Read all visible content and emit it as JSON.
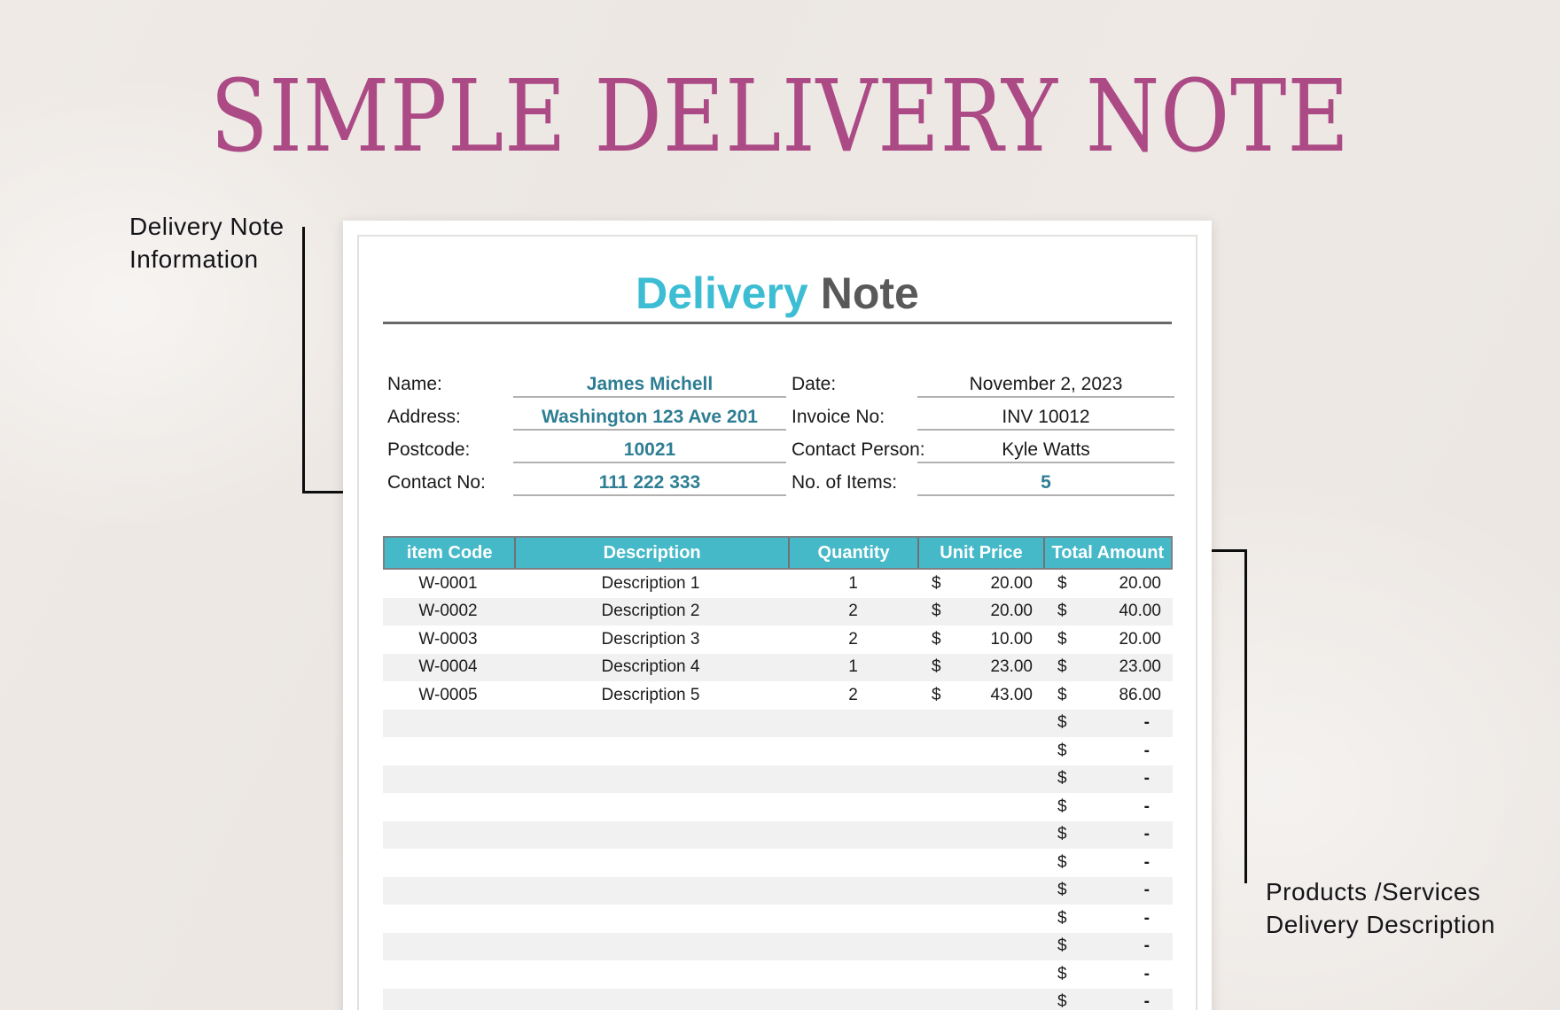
{
  "page": {
    "title": "SIMPLE DELIVERY NOTE"
  },
  "annotations": {
    "left": {
      "line1": "Delivery Note",
      "line2": "Information"
    },
    "right": {
      "line1": "Products /Services",
      "line2": "Delivery Description"
    }
  },
  "document": {
    "heading": {
      "accent": "Delivery",
      "rest": "Note"
    },
    "info_left": [
      {
        "label": "Name:",
        "value": "James Michell"
      },
      {
        "label": "Address:",
        "value": "Washington 123 Ave 201"
      },
      {
        "label": "Postcode:",
        "value": "10021"
      },
      {
        "label": "Contact No:",
        "value": "111 222 333"
      }
    ],
    "info_right": [
      {
        "label": "Date:",
        "value": "November 2, 2023"
      },
      {
        "label": "Invoice No:",
        "value": "INV 10012"
      },
      {
        "label": "Contact Person:",
        "value": "Kyle Watts"
      },
      {
        "label": "No. of Items:",
        "value": "5"
      }
    ],
    "table": {
      "headers": [
        "item Code",
        "Description",
        "Quantity",
        "Unit Price",
        "Total Amount"
      ],
      "currency": "$",
      "empty_value": "-",
      "rows": [
        {
          "code": "W-0001",
          "description": "Description 1",
          "qty": "1",
          "unit_price": "20.00",
          "total": "20.00"
        },
        {
          "code": "W-0002",
          "description": "Description 2",
          "qty": "2",
          "unit_price": "20.00",
          "total": "40.00"
        },
        {
          "code": "W-0003",
          "description": "Description 3",
          "qty": "2",
          "unit_price": "10.00",
          "total": "20.00"
        },
        {
          "code": "W-0004",
          "description": "Description 4",
          "qty": "1",
          "unit_price": "23.00",
          "total": "23.00"
        },
        {
          "code": "W-0005",
          "description": "Description 5",
          "qty": "2",
          "unit_price": "43.00",
          "total": "86.00"
        }
      ],
      "empty_row_count": 11
    }
  },
  "colors": {
    "page_background": "#ece7e3",
    "title_magenta": "#ac4a86",
    "heading_accent_teal": "#3dbdd4",
    "heading_gray": "#595959",
    "table_header_teal": "#46b9c8",
    "value_teal": "#2e7e93",
    "row_alt_gray": "#f1f1f1",
    "annotation_black": "#141418"
  }
}
